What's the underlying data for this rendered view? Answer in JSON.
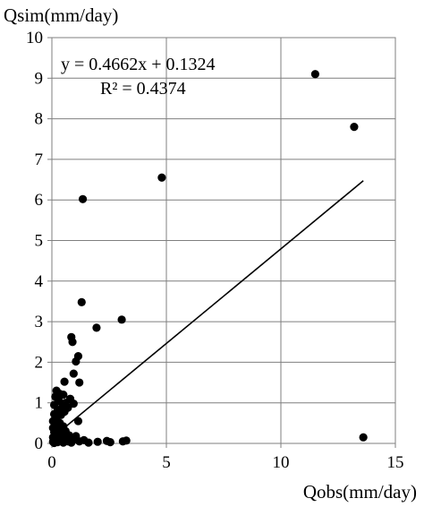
{
  "chart_data": {
    "type": "scatter",
    "ylabel": "Qsim(mm/day)",
    "xlabel": "Qobs(mm/day)",
    "xlim": [
      0,
      15
    ],
    "ylim": [
      0,
      10
    ],
    "x_ticks": [
      0,
      5,
      10,
      15
    ],
    "y_ticks": [
      0,
      1,
      2,
      3,
      4,
      5,
      6,
      7,
      8,
      9,
      10
    ],
    "grid": "horizontal and vertical",
    "trendline": {
      "equation": "y = 0.4662x + 0.1324",
      "r_squared": "R² = 0.4374",
      "slope": 0.4662,
      "intercept": 0.1324,
      "x_range": [
        0.05,
        13.6
      ]
    },
    "series": [
      {
        "marker_color": "#000000",
        "points": [
          [
            11.5,
            9.1
          ],
          [
            13.2,
            7.8
          ],
          [
            4.8,
            6.55
          ],
          [
            1.35,
            6.02
          ],
          [
            13.6,
            0.15
          ],
          [
            1.3,
            3.48
          ],
          [
            3.05,
            3.05
          ],
          [
            1.95,
            2.85
          ],
          [
            0.85,
            2.62
          ],
          [
            0.9,
            2.5
          ],
          [
            1.15,
            2.15
          ],
          [
            1.05,
            2.02
          ],
          [
            0.95,
            1.72
          ],
          [
            0.55,
            1.52
          ],
          [
            1.2,
            1.5
          ],
          [
            0.2,
            1.3
          ],
          [
            0.35,
            1.22
          ],
          [
            0.5,
            1.2
          ],
          [
            0.15,
            1.15
          ],
          [
            0.8,
            1.1
          ],
          [
            0.3,
            1.05
          ],
          [
            0.6,
            1.0
          ],
          [
            0.95,
            0.98
          ],
          [
            0.1,
            0.95
          ],
          [
            0.45,
            0.9
          ],
          [
            0.7,
            0.88
          ],
          [
            0.25,
            0.82
          ],
          [
            0.55,
            0.78
          ],
          [
            0.1,
            0.72
          ],
          [
            0.4,
            0.7
          ],
          [
            0.2,
            0.62
          ],
          [
            1.15,
            0.55
          ],
          [
            0.05,
            0.55
          ],
          [
            0.35,
            0.5
          ],
          [
            0.15,
            0.45
          ],
          [
            0.5,
            0.42
          ],
          [
            0.05,
            0.38
          ],
          [
            0.3,
            0.32
          ],
          [
            0.6,
            0.3
          ],
          [
            0.1,
            0.28
          ],
          [
            0.2,
            0.22
          ],
          [
            0.75,
            0.2
          ],
          [
            0.45,
            0.18
          ],
          [
            1.05,
            0.18
          ],
          [
            0.05,
            0.15
          ],
          [
            0.3,
            0.12
          ],
          [
            0.6,
            0.1
          ],
          [
            0.9,
            0.08
          ],
          [
            1.4,
            0.08
          ],
          [
            0.15,
            0.08
          ],
          [
            0.4,
            0.06
          ],
          [
            0.7,
            0.05
          ],
          [
            1.2,
            0.05
          ],
          [
            2.0,
            0.04
          ],
          [
            2.4,
            0.06
          ],
          [
            2.55,
            0.03
          ],
          [
            3.1,
            0.05
          ],
          [
            3.25,
            0.07
          ],
          [
            0.05,
            0.04
          ],
          [
            0.25,
            0.03
          ],
          [
            0.5,
            0.02
          ],
          [
            0.85,
            0.02
          ],
          [
            0.1,
            0.01
          ],
          [
            1.6,
            0.02
          ]
        ]
      }
    ]
  }
}
